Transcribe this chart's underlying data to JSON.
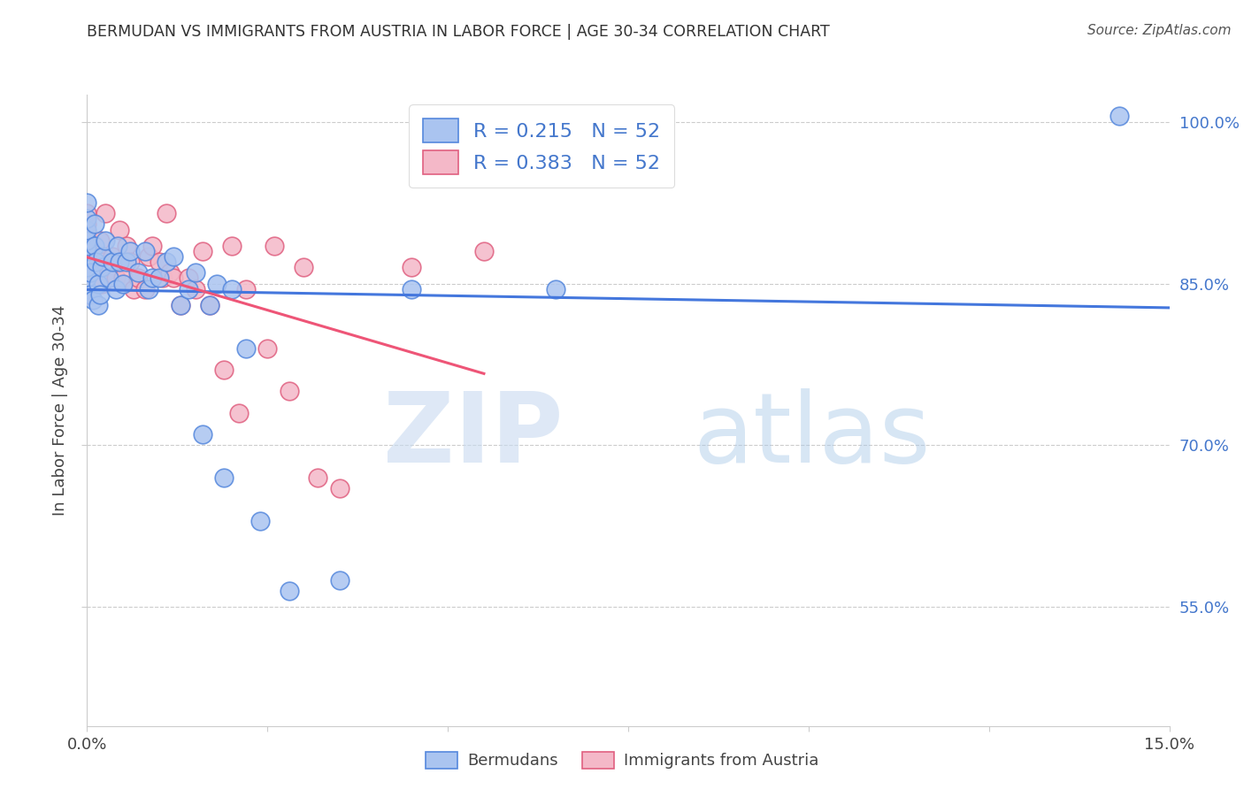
{
  "title": "BERMUDAN VS IMMIGRANTS FROM AUSTRIA IN LABOR FORCE | AGE 30-34 CORRELATION CHART",
  "source": "Source: ZipAtlas.com",
  "ylabel": "In Labor Force | Age 30-34",
  "xmin": 0.0,
  "xmax": 15.0,
  "ymin": 44.0,
  "ymax": 102.5,
  "yticks": [
    55.0,
    70.0,
    85.0,
    100.0
  ],
  "ytick_labels": [
    "55.0%",
    "70.0%",
    "85.0%",
    "100.0%"
  ],
  "blue_color": "#aac4f0",
  "pink_color": "#f4b8c8",
  "blue_edge_color": "#5588dd",
  "pink_edge_color": "#e06080",
  "blue_line_color": "#4477dd",
  "pink_line_color": "#ee5577",
  "blue_R": "0.215",
  "pink_R": "0.383",
  "N": "52",
  "bermudans_x": [
    0.0,
    0.0,
    0.0,
    0.0,
    0.0,
    0.0,
    0.0,
    0.0,
    0.0,
    0.0,
    0.05,
    0.05,
    0.08,
    0.1,
    0.1,
    0.12,
    0.15,
    0.15,
    0.18,
    0.2,
    0.22,
    0.25,
    0.3,
    0.35,
    0.4,
    0.42,
    0.45,
    0.5,
    0.55,
    0.6,
    0.7,
    0.8,
    0.85,
    0.9,
    1.0,
    1.1,
    1.2,
    1.3,
    1.4,
    1.5,
    1.6,
    1.7,
    1.8,
    1.9,
    2.0,
    2.2,
    2.4,
    2.8,
    3.5,
    4.5,
    6.5,
    14.3
  ],
  "bermudans_y": [
    84.5,
    85.5,
    86.5,
    87.5,
    88.0,
    88.5,
    89.0,
    90.0,
    91.0,
    92.5,
    84.0,
    86.0,
    83.5,
    88.5,
    90.5,
    87.0,
    83.0,
    85.0,
    84.0,
    86.5,
    87.5,
    89.0,
    85.5,
    87.0,
    84.5,
    88.5,
    87.0,
    85.0,
    87.0,
    88.0,
    86.0,
    88.0,
    84.5,
    85.5,
    85.5,
    87.0,
    87.5,
    83.0,
    84.5,
    86.0,
    71.0,
    83.0,
    85.0,
    67.0,
    84.5,
    79.0,
    63.0,
    56.5,
    57.5,
    84.5,
    84.5,
    100.5
  ],
  "austria_x": [
    0.0,
    0.0,
    0.0,
    0.0,
    0.0,
    0.0,
    0.0,
    0.0,
    0.0,
    0.05,
    0.08,
    0.1,
    0.12,
    0.15,
    0.18,
    0.2,
    0.22,
    0.25,
    0.3,
    0.35,
    0.4,
    0.45,
    0.5,
    0.55,
    0.6,
    0.65,
    0.7,
    0.8,
    0.85,
    0.9,
    1.0,
    1.05,
    1.1,
    1.15,
    1.2,
    1.3,
    1.4,
    1.5,
    1.6,
    1.7,
    1.9,
    2.0,
    2.1,
    2.2,
    2.5,
    2.6,
    2.8,
    3.0,
    3.2,
    3.5,
    4.5,
    5.5
  ],
  "austria_y": [
    84.0,
    85.0,
    86.0,
    87.0,
    88.0,
    88.5,
    89.5,
    90.5,
    91.5,
    84.5,
    87.0,
    88.0,
    85.5,
    87.5,
    89.0,
    85.0,
    87.0,
    91.5,
    86.0,
    87.5,
    85.5,
    90.0,
    85.5,
    88.5,
    87.0,
    84.5,
    85.5,
    84.5,
    87.5,
    88.5,
    87.0,
    85.5,
    91.5,
    86.0,
    85.5,
    83.0,
    85.5,
    84.5,
    88.0,
    83.0,
    77.0,
    88.5,
    73.0,
    84.5,
    79.0,
    88.5,
    75.0,
    86.5,
    67.0,
    66.0,
    86.5,
    88.0
  ]
}
